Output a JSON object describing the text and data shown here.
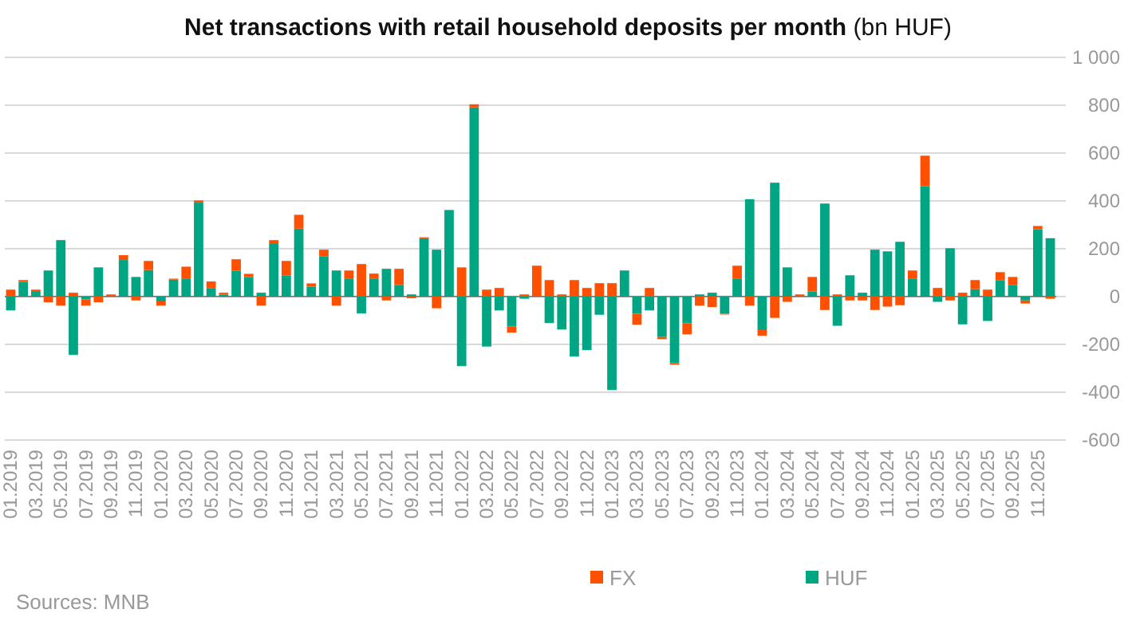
{
  "chart_data": {
    "type": "bar",
    "title": "Net transactions with retail household deposits per month (bn HUF)",
    "categories": [
      "01.2019",
      null,
      "03.2019",
      null,
      "05.2019",
      null,
      "07.2019",
      null,
      "09.2019",
      null,
      "11.2019",
      null,
      "01.2020",
      null,
      "03.2020",
      null,
      "05.2020",
      null,
      "07.2020",
      null,
      "09.2020",
      null,
      "11.2020",
      null,
      "01.2021",
      null,
      "03.2021",
      null,
      "05.2021",
      null,
      "07.2021",
      null,
      "09.2021",
      null,
      "11.2021",
      null,
      "01.2022",
      null,
      "03.2022",
      null,
      "05.2022",
      null,
      "07.2022",
      null,
      "09.2022",
      null,
      "11.2022",
      null,
      "01.2023",
      null,
      "03.2023",
      null,
      "05.2023",
      null,
      "07.2023",
      null,
      "09.2023",
      null,
      "11.2023",
      null,
      "01.2024",
      null,
      "03.2024",
      null,
      "05.2024",
      null,
      "07.2024",
      null,
      "09.2024",
      null,
      "11.2024",
      null,
      "01.2025",
      null,
      "03.2025",
      null,
      "05.2025",
      null,
      "07.2025",
      null,
      "09.2025",
      null,
      "11.2025",
      null
    ],
    "stacked": true,
    "series": [
      {
        "name": "HUF",
        "color": "#00a583",
        "values": [
          -58,
          62,
          20,
          109,
          236,
          -244,
          -11,
          122,
          0,
          153,
          82,
          111,
          -20,
          71,
          76,
          393,
          36,
          9,
          109,
          82,
          16,
          220,
          89,
          284,
          42,
          169,
          109,
          76,
          -71,
          76,
          116,
          49,
          9,
          244,
          196,
          362,
          -291,
          791,
          -209,
          -58,
          -124,
          -9,
          0,
          -111,
          -138,
          -251,
          -224,
          -76,
          -391,
          109,
          -71,
          -58,
          -169,
          -278,
          -111,
          9,
          16,
          -71,
          76,
          407,
          -140,
          476,
          122,
          0,
          22,
          389,
          -122,
          89,
          16,
          196,
          189,
          229,
          76,
          462,
          -22,
          202,
          -116,
          31,
          -102,
          69,
          49,
          -16,
          282,
          244
        ]
      },
      {
        "name": "FX",
        "color": "#fe5000",
        "values": [
          29,
          7,
          9,
          -24,
          -38,
          16,
          -27,
          -24,
          9,
          20,
          -16,
          38,
          -18,
          4,
          49,
          9,
          27,
          7,
          47,
          13,
          -38,
          16,
          60,
          58,
          13,
          27,
          -38,
          33,
          136,
          20,
          -16,
          67,
          -7,
          4,
          -49,
          0,
          122,
          13,
          29,
          36,
          -27,
          9,
          129,
          69,
          9,
          69,
          36,
          56,
          56,
          0,
          -47,
          36,
          -9,
          -7,
          -47,
          -38,
          -44,
          -4,
          53,
          -38,
          -24,
          -89,
          -22,
          9,
          60,
          -56,
          9,
          -16,
          -16,
          -56,
          -42,
          -36,
          33,
          127,
          36,
          -16,
          16,
          38,
          29,
          33,
          33,
          -13,
          13,
          -9
        ]
      }
    ],
    "ylim": [
      -600,
      1000
    ],
    "yticks": [
      -600,
      -400,
      -200,
      0,
      200,
      400,
      600,
      800,
      {
        "value": 1000,
        "label": "1 000"
      }
    ],
    "grid": "y",
    "legend": "bottom",
    "annotations": [
      "Sources: MNB"
    ]
  }
}
